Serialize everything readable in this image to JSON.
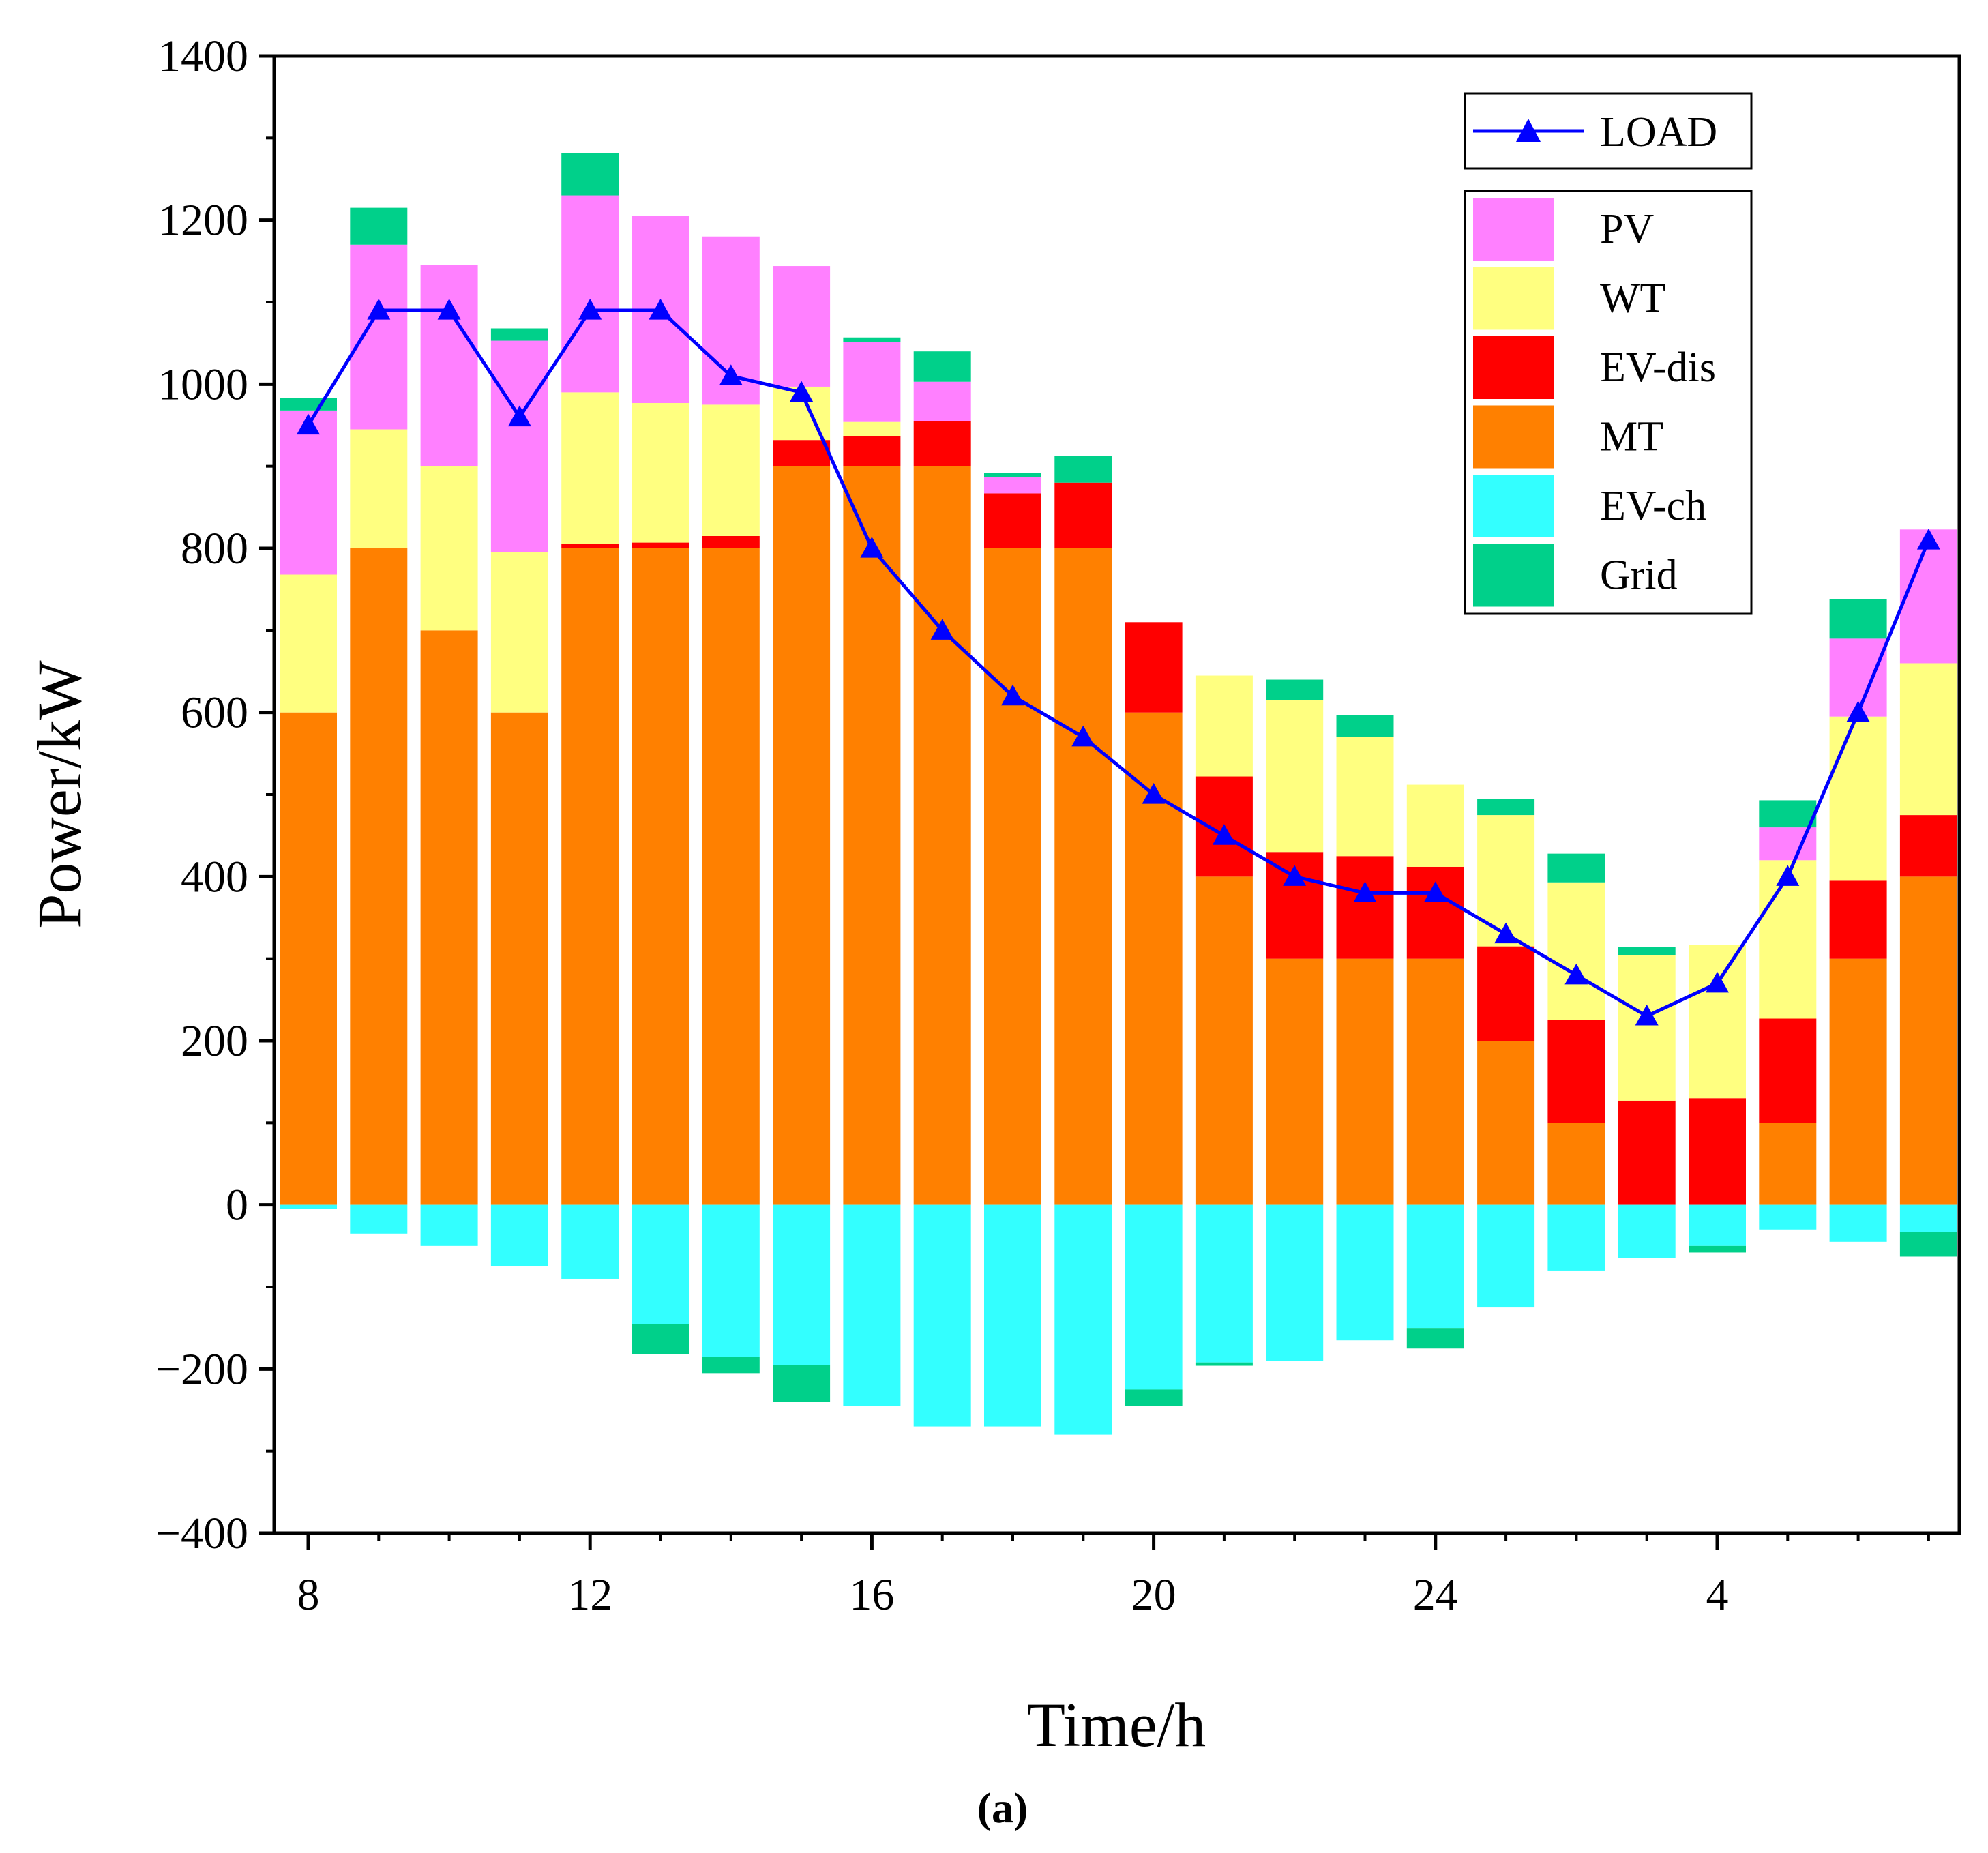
{
  "chart_data": {
    "type": "bar",
    "stacked": true,
    "xlabel": "Time/h",
    "ylabel": "Power/kW",
    "caption": "(a)",
    "ylim": [
      -400,
      1400
    ],
    "yticks": [
      -400,
      -200,
      0,
      200,
      400,
      600,
      800,
      1000,
      1200,
      1400
    ],
    "ytick_labels": [
      "−400",
      "−200",
      "0",
      "200",
      "400",
      "600",
      "800",
      "1000",
      "1200",
      "1400"
    ],
    "categories": [
      8,
      9,
      10,
      11,
      12,
      13,
      14,
      15,
      16,
      17,
      18,
      19,
      20,
      21,
      22,
      23,
      24,
      1,
      2,
      3,
      4,
      5,
      6,
      7
    ],
    "xtick_labels": [
      {
        "index": 0,
        "label": "8"
      },
      {
        "index": 4,
        "label": "12"
      },
      {
        "index": 8,
        "label": "16"
      },
      {
        "index": 12,
        "label": "20"
      },
      {
        "index": 16,
        "label": "24"
      },
      {
        "index": 20,
        "label": "4"
      }
    ],
    "grid": false,
    "legend_position": "top-right",
    "line_series": {
      "name": "LOAD",
      "color": "#0000ff",
      "marker": "triangle",
      "values": [
        950,
        1090,
        1090,
        960,
        1090,
        1090,
        1010,
        990,
        800,
        700,
        620,
        570,
        500,
        450,
        400,
        380,
        380,
        330,
        280,
        230,
        270,
        400,
        600,
        810
      ]
    },
    "series": [
      {
        "name": "MT",
        "color": "#ff8000",
        "values": [
          600,
          800,
          700,
          600,
          800,
          800,
          800,
          900,
          900,
          900,
          800,
          800,
          600,
          400,
          300,
          300,
          300,
          200,
          100,
          0,
          0,
          100,
          300,
          400
        ]
      },
      {
        "name": "EV-dis",
        "color": "#ff0000",
        "values": [
          0,
          0,
          0,
          0,
          5,
          7,
          15,
          32,
          37,
          55,
          67,
          80,
          110,
          122,
          130,
          125,
          112,
          115,
          125,
          127,
          130,
          127,
          95,
          75
        ]
      },
      {
        "name": "WT",
        "color": "#ffff80",
        "values": [
          168,
          145,
          200,
          195,
          185,
          170,
          160,
          65,
          17,
          0,
          0,
          0,
          0,
          123,
          185,
          145,
          100,
          160,
          168,
          177,
          187,
          193,
          200,
          185
        ]
      },
      {
        "name": "PV",
        "color": "#ff80ff",
        "values": [
          200,
          225,
          245,
          258,
          240,
          228,
          205,
          147,
          97,
          48,
          20,
          0,
          0,
          0,
          0,
          0,
          0,
          0,
          0,
          0,
          0,
          40,
          95,
          163
        ]
      },
      {
        "name": "Grid",
        "color": "#00d08a",
        "pos_values": [
          15,
          45,
          0,
          15,
          52,
          0,
          0,
          0,
          6,
          37,
          5,
          33,
          0,
          0,
          25,
          27,
          0,
          20,
          35,
          10,
          0,
          33,
          48,
          0
        ],
        "neg_values": [
          0,
          0,
          0,
          0,
          0,
          -37,
          -20,
          -45,
          0,
          0,
          0,
          0,
          -20,
          -4,
          0,
          0,
          -25,
          0,
          0,
          0,
          -8,
          0,
          0,
          -30
        ]
      },
      {
        "name": "EV-ch",
        "color": "#33ffff",
        "values": [
          -5,
          -35,
          -50,
          -75,
          -90,
          -145,
          -185,
          -195,
          -245,
          -270,
          -270,
          -280,
          -225,
          -192,
          -190,
          -165,
          -150,
          -125,
          -80,
          -65,
          -50,
          -30,
          -45,
          -33
        ]
      }
    ]
  }
}
